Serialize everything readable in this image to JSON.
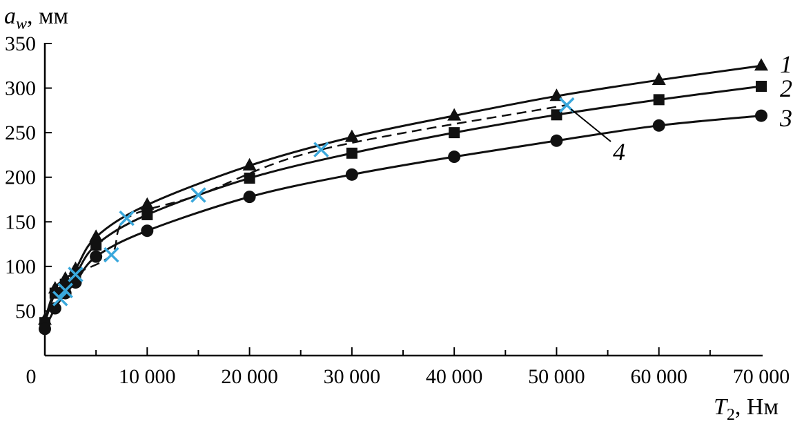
{
  "chart_data": {
    "type": "line",
    "title": "",
    "ylabel_var": "a",
    "ylabel_sub": "w",
    "ylabel_unit": ", мм",
    "xlabel_var": "T",
    "xlabel_sub": "2",
    "xlabel_unit": ", Нм",
    "xlim": [
      0,
      70000
    ],
    "ylim": [
      0,
      350
    ],
    "x_ticks": [
      0,
      10000,
      20000,
      30000,
      40000,
      50000,
      60000,
      70000
    ],
    "x_tick_labels": [
      "0",
      "10 000",
      "20 000",
      "30 000",
      "40 000",
      "50 000",
      "60 000",
      "70 000"
    ],
    "y_ticks": [
      50,
      100,
      150,
      200,
      250,
      300,
      350
    ],
    "y_tick_labels": [
      "50",
      "100",
      "150",
      "200",
      "250",
      "300",
      "350"
    ],
    "x_minor_step": 5000,
    "grid": false,
    "series": [
      {
        "name": "1",
        "marker": "triangle",
        "line": "solid",
        "color": "#111111",
        "x": [
          0,
          1000,
          2000,
          3000,
          5000,
          10000,
          20000,
          30000,
          40000,
          50000,
          60000,
          70000
        ],
        "y": [
          40,
          75,
          86,
          97,
          133,
          169,
          213,
          245,
          269,
          291,
          309,
          325
        ]
      },
      {
        "name": "2",
        "marker": "square",
        "line": "solid",
        "color": "#111111",
        "x": [
          0,
          1000,
          2000,
          3000,
          5000,
          10000,
          20000,
          30000,
          40000,
          50000,
          60000,
          70000
        ],
        "y": [
          37,
          70,
          80,
          91,
          124,
          158,
          199,
          227,
          250,
          270,
          287,
          302
        ]
      },
      {
        "name": "3",
        "marker": "circle",
        "line": "solid",
        "color": "#111111",
        "x": [
          0,
          1000,
          2000,
          3000,
          5000,
          10000,
          20000,
          30000,
          40000,
          50000,
          60000,
          70000
        ],
        "y": [
          30,
          53,
          70,
          82,
          111,
          140,
          178,
          203,
          223,
          241,
          258,
          269
        ]
      },
      {
        "name": "4",
        "marker": "cross",
        "line": "dashed",
        "color": "#3aa8dc",
        "x": [
          1500,
          2000,
          3000,
          6500,
          8000,
          15000,
          27000,
          51000
        ],
        "y": [
          64,
          73,
          91,
          113,
          154,
          180,
          231,
          281
        ]
      }
    ]
  }
}
